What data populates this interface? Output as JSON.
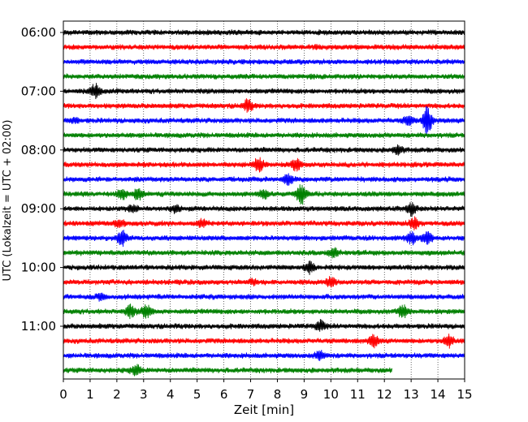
{
  "chart_data": {
    "type": "line",
    "title": "",
    "xlabel": "Zeit  [min]",
    "ylabel": "UTC (Lokalzeit = UTC + 02:00)",
    "xlim": [
      0,
      15
    ],
    "x_ticks": [
      "0",
      "1",
      "2",
      "3",
      "4",
      "5",
      "6",
      "7",
      "8",
      "9",
      "10",
      "11",
      "12",
      "13",
      "14",
      "15"
    ],
    "y_tick_labels": [
      "06:00",
      "07:00",
      "08:00",
      "09:00",
      "10:00",
      "11:00"
    ],
    "grid": "vertical dotted",
    "row_interval_minutes": 15,
    "row_colors": [
      "#000000",
      "#ff0000",
      "#0000ff",
      "#008000"
    ],
    "series": [
      {
        "start": "06:00",
        "duration_min": 15,
        "events": [
          [
            5.3,
            0.05
          ]
        ]
      },
      {
        "start": "06:15",
        "duration_min": 15,
        "events": [
          [
            9.5,
            0.05
          ]
        ]
      },
      {
        "start": "06:30",
        "duration_min": 15,
        "events": []
      },
      {
        "start": "06:45",
        "duration_min": 15,
        "events": [
          [
            9.3,
            0.05
          ]
        ]
      },
      {
        "start": "07:00",
        "duration_min": 15,
        "events": [
          [
            1.2,
            0.45
          ]
        ]
      },
      {
        "start": "07:15",
        "duration_min": 15,
        "events": [
          [
            6.9,
            0.4
          ]
        ]
      },
      {
        "start": "07:30",
        "duration_min": 15,
        "events": [
          [
            0.4,
            0.15
          ],
          [
            13.6,
            1.0
          ],
          [
            12.9,
            0.3
          ]
        ]
      },
      {
        "start": "07:45",
        "duration_min": 15,
        "events": []
      },
      {
        "start": "08:00",
        "duration_min": 15,
        "events": [
          [
            12.5,
            0.3
          ]
        ]
      },
      {
        "start": "08:15",
        "duration_min": 15,
        "events": [
          [
            7.3,
            0.5
          ],
          [
            8.7,
            0.4
          ]
        ]
      },
      {
        "start": "08:30",
        "duration_min": 15,
        "events": [
          [
            8.4,
            0.35
          ]
        ]
      },
      {
        "start": "08:45",
        "duration_min": 15,
        "events": [
          [
            2.2,
            0.35
          ],
          [
            2.8,
            0.4
          ],
          [
            7.5,
            0.3
          ],
          [
            8.9,
            0.7
          ]
        ]
      },
      {
        "start": "09:00",
        "duration_min": 15,
        "events": [
          [
            2.6,
            0.2
          ],
          [
            4.2,
            0.25
          ],
          [
            13.0,
            0.4
          ]
        ]
      },
      {
        "start": "09:15",
        "duration_min": 15,
        "events": [
          [
            2.1,
            0.25
          ],
          [
            5.2,
            0.25
          ],
          [
            13.1,
            0.4
          ]
        ]
      },
      {
        "start": "09:30",
        "duration_min": 15,
        "events": [
          [
            2.2,
            0.5
          ],
          [
            13.0,
            0.4
          ],
          [
            13.6,
            0.45
          ]
        ]
      },
      {
        "start": "09:45",
        "duration_min": 15,
        "events": [
          [
            10.1,
            0.35
          ]
        ]
      },
      {
        "start": "10:00",
        "duration_min": 15,
        "events": [
          [
            9.2,
            0.35
          ]
        ]
      },
      {
        "start": "10:15",
        "duration_min": 15,
        "events": [
          [
            7.1,
            0.15
          ],
          [
            10.0,
            0.3
          ]
        ]
      },
      {
        "start": "10:30",
        "duration_min": 15,
        "events": [
          [
            1.4,
            0.2
          ]
        ]
      },
      {
        "start": "10:45",
        "duration_min": 15,
        "events": [
          [
            2.5,
            0.4
          ],
          [
            3.1,
            0.45
          ],
          [
            12.7,
            0.45
          ]
        ]
      },
      {
        "start": "11:00",
        "duration_min": 15,
        "events": [
          [
            9.6,
            0.35
          ]
        ]
      },
      {
        "start": "11:15",
        "duration_min": 15,
        "events": [
          [
            11.6,
            0.4
          ],
          [
            14.4,
            0.45
          ]
        ]
      },
      {
        "start": "11:30",
        "duration_min": 15,
        "events": [
          [
            9.6,
            0.3
          ]
        ]
      },
      {
        "start": "11:45",
        "duration_min": 12.3,
        "events": [
          [
            2.7,
            0.35
          ]
        ]
      }
    ]
  }
}
